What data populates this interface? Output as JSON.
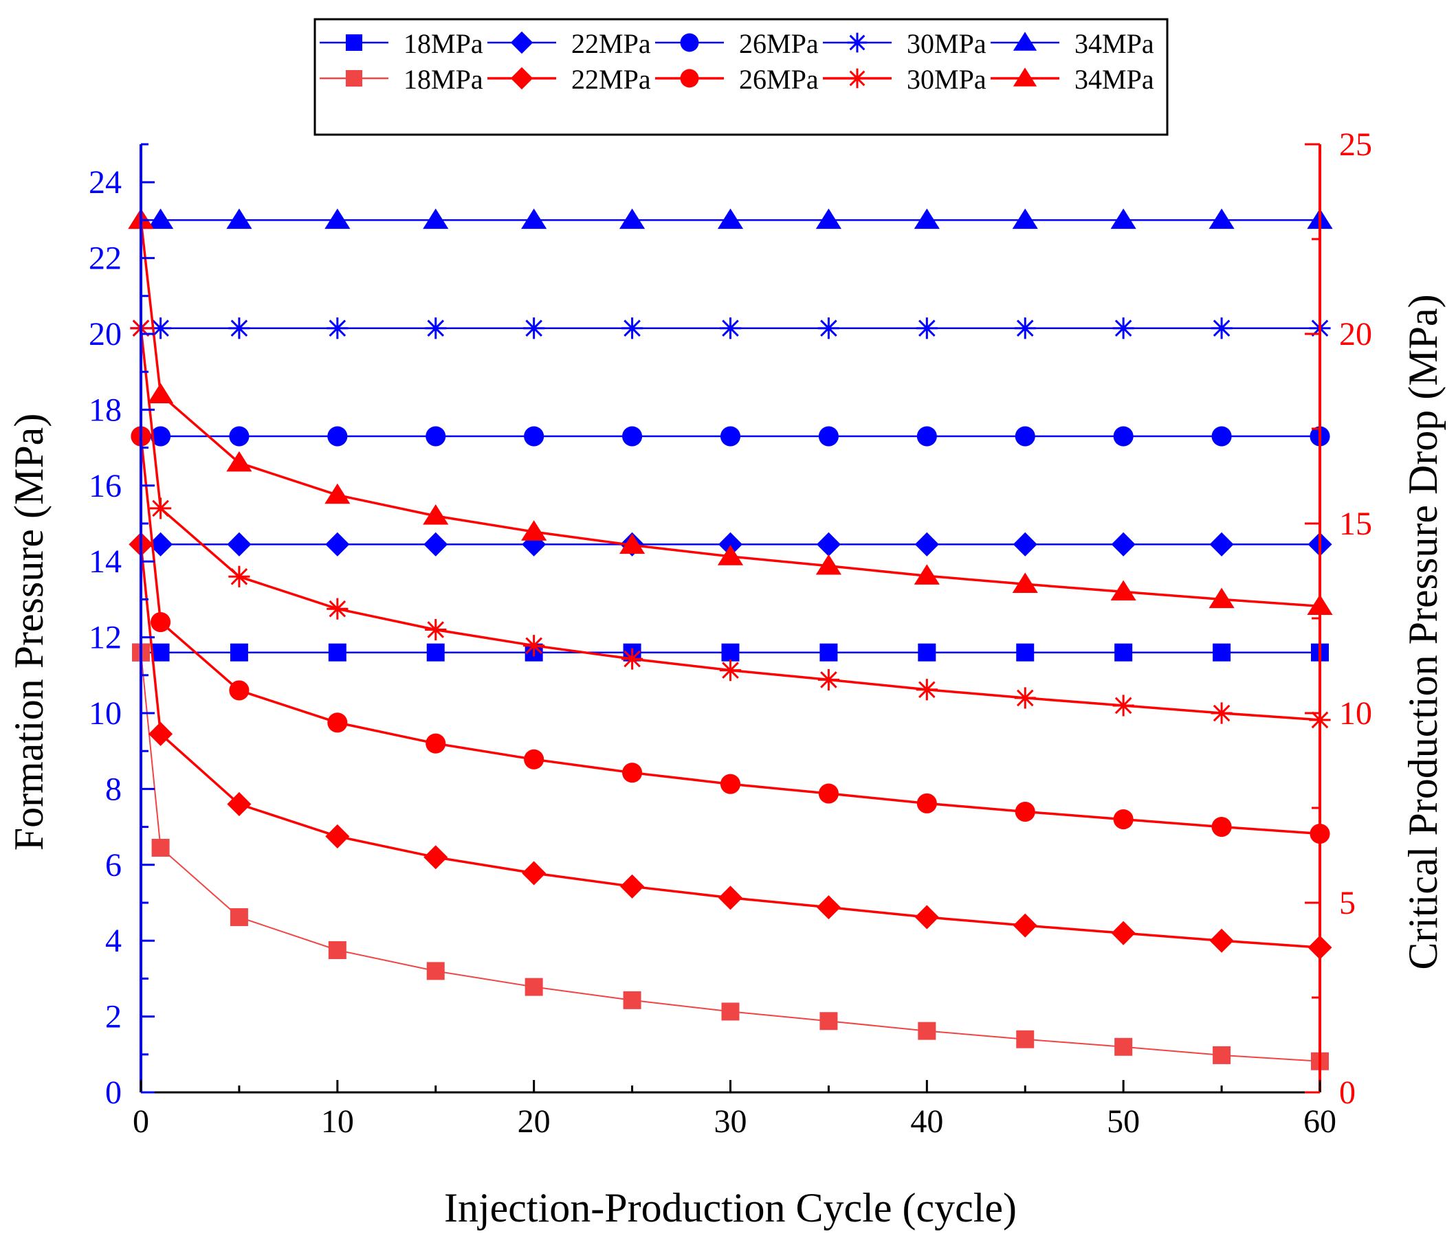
{
  "chart_data": {
    "type": "line",
    "xlabel": "Injection-Production Cycle (cycle)",
    "ylabel_left": "Formation Pressure (MPa)",
    "ylabel_right": "Critical Production Pressure Drop (MPa)",
    "xlim": [
      0,
      60
    ],
    "ylim_left": [
      0,
      25
    ],
    "ylim_right": [
      0,
      25
    ],
    "xticks": [
      0,
      10,
      20,
      30,
      40,
      50,
      60
    ],
    "yticks_left": [
      0,
      2,
      4,
      6,
      8,
      10,
      12,
      14,
      16,
      18,
      20,
      22,
      24
    ],
    "yticks_right": [
      0,
      5,
      10,
      15,
      20,
      25
    ],
    "grid": false,
    "legend_position": "top-center",
    "x": [
      0,
      1,
      5,
      10,
      15,
      20,
      25,
      30,
      35,
      40,
      45,
      50,
      55,
      60
    ],
    "colors": {
      "formation": "#0000ff",
      "drop": "#ff0000",
      "drop_18": "#f04545"
    },
    "formation_pressure_series": [
      {
        "name": "18MPa",
        "marker": "square",
        "values": [
          11.6,
          11.6,
          11.6,
          11.6,
          11.6,
          11.6,
          11.6,
          11.6,
          11.6,
          11.6,
          11.6,
          11.6,
          11.6,
          11.6
        ]
      },
      {
        "name": "22MPa",
        "marker": "diamond",
        "values": [
          14.45,
          14.45,
          14.45,
          14.45,
          14.45,
          14.45,
          14.45,
          14.45,
          14.45,
          14.45,
          14.45,
          14.45,
          14.45,
          14.45
        ]
      },
      {
        "name": "26MPa",
        "marker": "circle",
        "values": [
          17.3,
          17.3,
          17.3,
          17.3,
          17.3,
          17.3,
          17.3,
          17.3,
          17.3,
          17.3,
          17.3,
          17.3,
          17.3,
          17.3
        ]
      },
      {
        "name": "30MPa",
        "marker": "asterisk",
        "values": [
          20.15,
          20.15,
          20.15,
          20.15,
          20.15,
          20.15,
          20.15,
          20.15,
          20.15,
          20.15,
          20.15,
          20.15,
          20.15,
          20.15
        ]
      },
      {
        "name": "34MPa",
        "marker": "triangle",
        "values": [
          23.0,
          23.0,
          23.0,
          23.0,
          23.0,
          23.0,
          23.0,
          23.0,
          23.0,
          23.0,
          23.0,
          23.0,
          23.0,
          23.0
        ]
      }
    ],
    "critical_drop_series": [
      {
        "name": "18MPa",
        "marker": "square",
        "values": [
          11.6,
          6.45,
          4.62,
          3.75,
          3.2,
          2.78,
          2.43,
          2.13,
          1.88,
          1.62,
          1.4,
          1.2,
          0.98,
          0.82
        ]
      },
      {
        "name": "22MPa",
        "marker": "diamond",
        "values": [
          14.45,
          9.45,
          7.6,
          6.75,
          6.2,
          5.78,
          5.43,
          5.13,
          4.88,
          4.62,
          4.4,
          4.2,
          4.0,
          3.82
        ]
      },
      {
        "name": "26MPa",
        "marker": "circle",
        "values": [
          17.3,
          12.4,
          10.6,
          9.75,
          9.2,
          8.78,
          8.43,
          8.13,
          7.88,
          7.62,
          7.4,
          7.2,
          7.0,
          6.82
        ]
      },
      {
        "name": "30MPa",
        "marker": "asterisk",
        "values": [
          20.15,
          15.4,
          13.6,
          12.75,
          12.2,
          11.78,
          11.43,
          11.13,
          10.88,
          10.62,
          10.4,
          10.2,
          10.0,
          9.82
        ]
      },
      {
        "name": "34MPa",
        "marker": "triangle",
        "values": [
          23.0,
          18.4,
          16.6,
          15.75,
          15.2,
          14.78,
          14.43,
          14.13,
          13.88,
          13.62,
          13.4,
          13.2,
          13.0,
          12.82
        ]
      }
    ]
  }
}
